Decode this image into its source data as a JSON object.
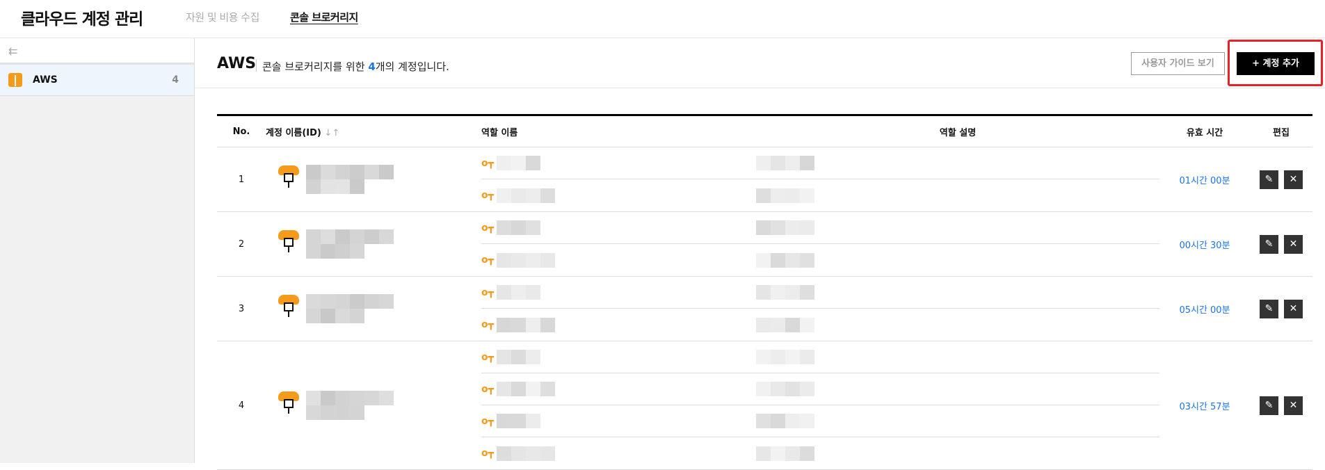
{
  "header": {
    "title": "클라우드 계정 관리",
    "tabs": [
      {
        "label": "자원 및 비용 수집",
        "active": false
      },
      {
        "label": "콘솔 브로커리지",
        "active": true
      }
    ]
  },
  "sidebar": {
    "collapse_icon": "collapse-left-icon",
    "items": [
      {
        "label": "AWS",
        "count": "4",
        "icon": "aws-cube-icon"
      }
    ]
  },
  "content": {
    "title": "AWS",
    "desc_pre": "콘솔 브로커리지를 위한 ",
    "desc_count": "4",
    "desc_post": "개의 계정입니다.",
    "guide_button": "사용자 가이드 보기",
    "add_button": "+ 계정 추가"
  },
  "table": {
    "columns": [
      "No.",
      "계정 이름(ID)",
      "역할 이름",
      "역할 설명",
      "유효 시간",
      "편집"
    ],
    "sort_icon": "↓↑",
    "rows": [
      {
        "no": "1",
        "roles": 2,
        "time": "01시간 00분"
      },
      {
        "no": "2",
        "roles": 2,
        "time": "00시간 30분"
      },
      {
        "no": "3",
        "roles": 2,
        "time": "05시간 00분"
      },
      {
        "no": "4",
        "roles": 4,
        "time": "03시간 57분"
      }
    ]
  },
  "colors": {
    "accent": "#1a73e8",
    "aws_orange": "#f59b1c",
    "highlight": "#e8202a"
  }
}
